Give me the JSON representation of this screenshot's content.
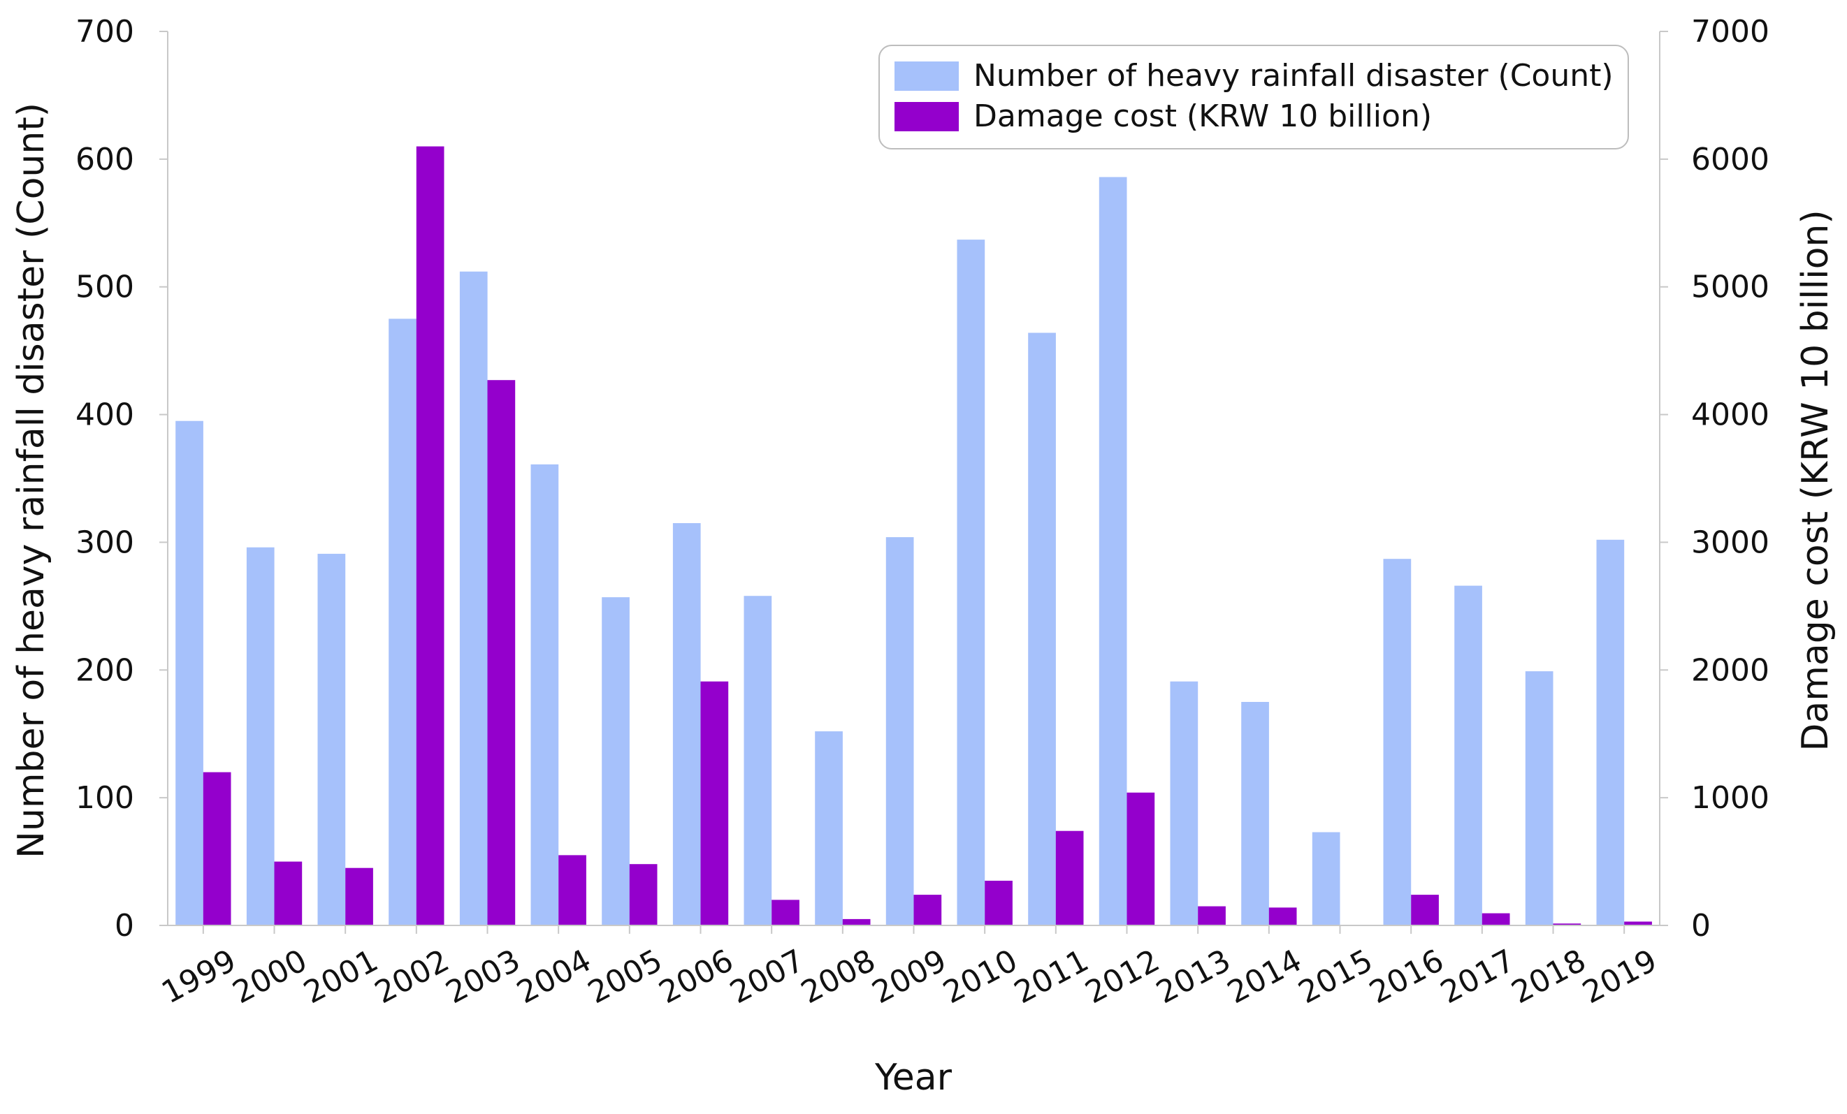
{
  "chart_data": {
    "type": "bar",
    "title": "",
    "xlabel": "Year",
    "ylabel_left": "Number of heavy rainfall disaster (Count)",
    "ylabel_right": "Damage cost (KRW 10 billion)",
    "ylim_left": [
      0,
      700
    ],
    "ylim_right": [
      0,
      7000
    ],
    "yticks_left": [
      "0",
      "100",
      "200",
      "300",
      "400",
      "500",
      "600",
      "700"
    ],
    "yticks_right": [
      "0",
      "1000",
      "2000",
      "3000",
      "4000",
      "5000",
      "6000",
      "7000"
    ],
    "categories": [
      "1999",
      "2000",
      "2001",
      "2002",
      "2003",
      "2004",
      "2005",
      "2006",
      "2007",
      "2008",
      "2009",
      "2010",
      "2011",
      "2012",
      "2013",
      "2014",
      "2015",
      "2016",
      "2017",
      "2018",
      "2019"
    ],
    "series": [
      {
        "name": "Number of heavy rainfall disaster (Count)",
        "axis": "left",
        "color": "#a6c1fb",
        "values": [
          395,
          296,
          291,
          475,
          512,
          361,
          257,
          315,
          258,
          152,
          304,
          537,
          464,
          586,
          191,
          175,
          73,
          287,
          266,
          199,
          302
        ]
      },
      {
        "name": "Damage cost (KRW 10 billion)",
        "axis": "right",
        "color": "#9400cc",
        "values": [
          1200,
          500,
          450,
          6100,
          4270,
          550,
          480,
          1910,
          200,
          50,
          240,
          350,
          740,
          1040,
          150,
          140,
          5,
          240,
          95,
          15,
          30
        ]
      }
    ],
    "legend": {
      "position": "top-right",
      "entries": [
        "Number of heavy rainfall disaster (Count)",
        "Damage cost (KRW 10 billion)"
      ]
    },
    "grid": false
  }
}
